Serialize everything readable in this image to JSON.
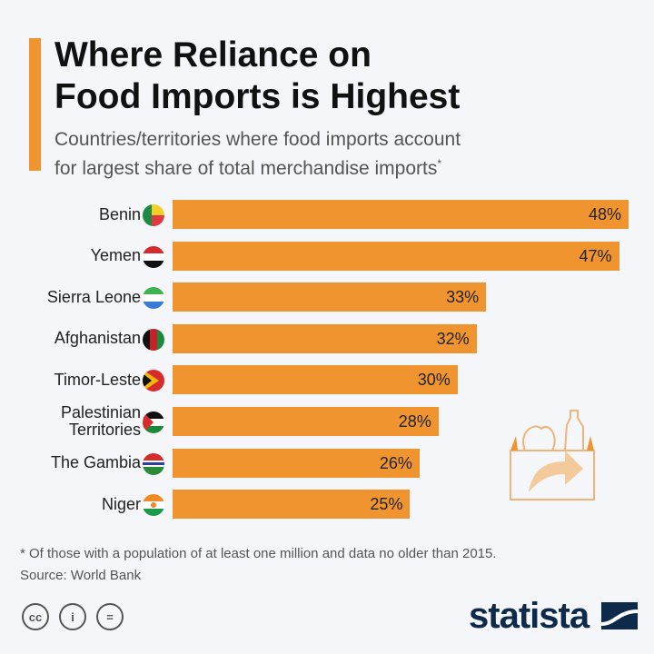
{
  "title_line1": "Where Reliance on",
  "title_line2": "Food Imports is Highest",
  "subtitle_line1": "Countries/territories where food imports account",
  "subtitle_line2": "for largest share of total merchandise imports",
  "subtitle_mark": "*",
  "footnote": "* Of those with a population of at least one million and data no older than 2015.",
  "source": "Source: World Bank",
  "license_icons": [
    "cc",
    "by",
    "nd"
  ],
  "license_text": {
    "cc": "cc",
    "by": "i",
    "nd": "="
  },
  "logo": "statista",
  "bar_color": "#f0942f",
  "chart_data": {
    "type": "bar",
    "orientation": "horizontal",
    "title": "Where Reliance on Food Imports is Highest",
    "categories": [
      "Benin",
      "Yemen",
      "Sierra Leone",
      "Afghanistan",
      "Timor-Leste",
      "Palestinian Territories",
      "The Gambia",
      "Niger"
    ],
    "values": [
      48,
      47,
      33,
      32,
      30,
      28,
      26,
      25
    ],
    "labels": [
      "48%",
      "47%",
      "33%",
      "32%",
      "30%",
      "28%",
      "26%",
      "25%"
    ],
    "unit": "%",
    "xlim": [
      0,
      48
    ]
  }
}
